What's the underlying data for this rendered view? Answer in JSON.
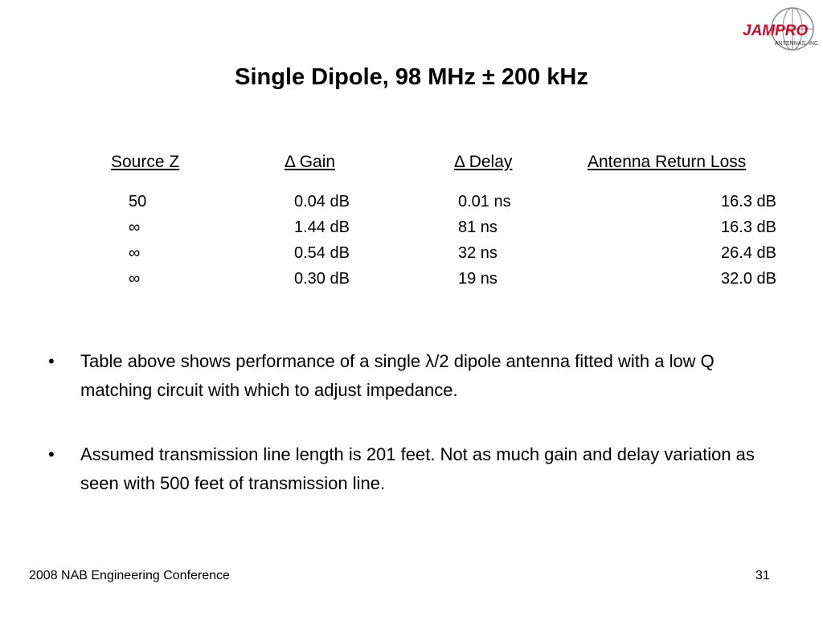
{
  "header": {
    "title": "Single Dipole, 98 MHz ± 200 kHz",
    "logo": "JAMPRO",
    "logo_sub": "ANTENNAS, INC."
  },
  "table": {
    "columns": [
      "Source Z",
      "Δ Gain",
      "Δ Delay",
      "Antenna Return Loss"
    ],
    "rows": [
      [
        "50",
        "0.04 dB",
        "0.01 ns",
        "16.3 dB"
      ],
      [
        "∞",
        "1.44 dB",
        "81 ns",
        "16.3 dB"
      ],
      [
        "∞",
        "0.54 dB",
        "32 ns",
        "26.4 dB"
      ],
      [
        "∞",
        "0.30 dB",
        "19 ns",
        "32.0 dB"
      ]
    ]
  },
  "bullets": [
    "Table above shows performance of a single λ/2 dipole antenna fitted with a low Q matching circuit with which to adjust impedance.",
    "Assumed transmission line length is 201 feet.  Not as much gain and delay variation as seen with 500 feet of transmission line."
  ],
  "footer": {
    "left": "2008 NAB Engineering Conference",
    "page": "31"
  }
}
